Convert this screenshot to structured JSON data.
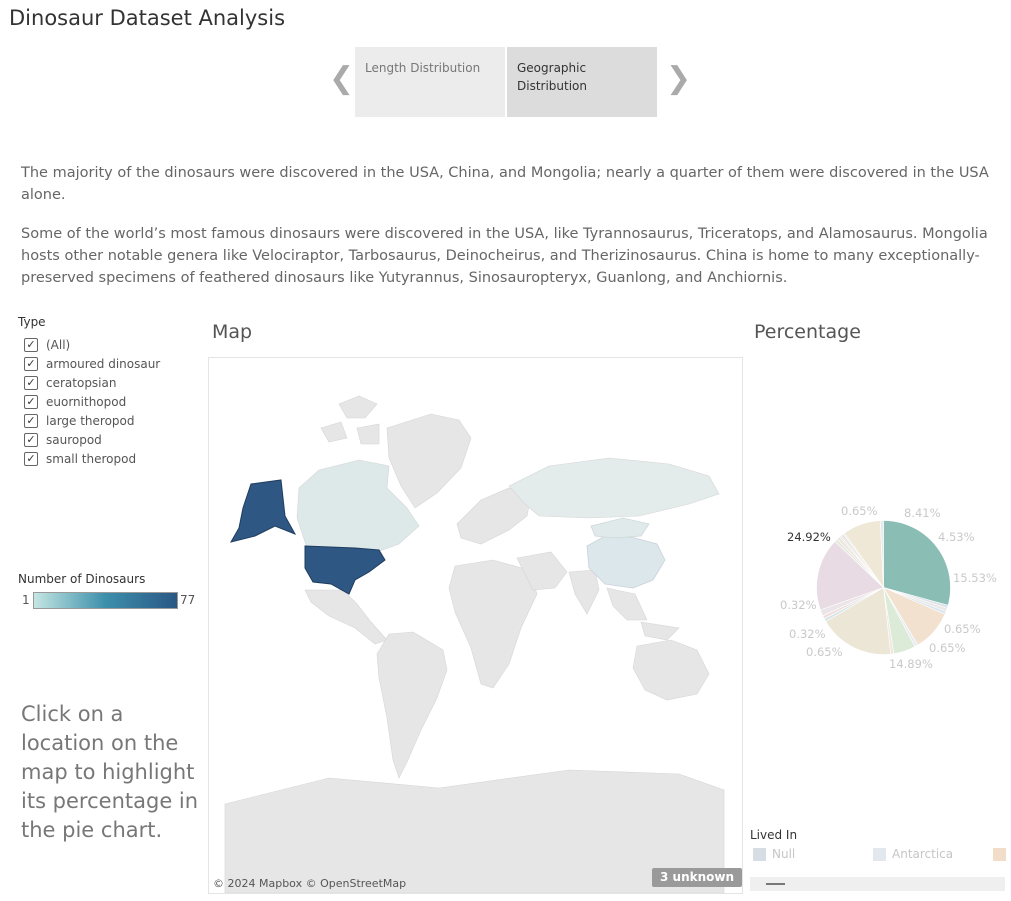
{
  "title": "Dinosaur Dataset Analysis",
  "story_nav": {
    "prev_icon": "chevron-left-icon",
    "next_icon": "chevron-right-icon",
    "tabs": [
      {
        "label": "Length Distribution",
        "active": false
      },
      {
        "label": "Geographic Distribution",
        "active": true
      }
    ]
  },
  "description": {
    "paragraph1": "The majority of the dinosaurs were discovered in the USA, China, and Mongolia; nearly a quarter of them were discovered in the USA alone.",
    "paragraph2": "Some of the world’s most famous dinosaurs were discovered in the USA, like Tyrannosaurus, Triceratops, and Alamosaurus. Mongolia hosts other notable genera like Velociraptor, Tarbosaurus, Deinocheirus, and Therizinosaurus. China is home to many exceptionally-preserved specimens of feathered dinosaurs like Yutyrannus, Sinosauropteryx, Guanlong, and Anchiornis."
  },
  "type_filter": {
    "label": "Type",
    "items": [
      {
        "label": "(All)",
        "checked": true
      },
      {
        "label": "armoured dinosaur",
        "checked": true
      },
      {
        "label": "ceratopsian",
        "checked": true
      },
      {
        "label": "euornithopod",
        "checked": true
      },
      {
        "label": "large theropod",
        "checked": true
      },
      {
        "label": "sauropod",
        "checked": true
      },
      {
        "label": "small theropod",
        "checked": true
      }
    ]
  },
  "count_legend": {
    "label": "Number of Dinosaurs",
    "min": "1",
    "max": "77",
    "colors": [
      "#c4e6e2",
      "#3c8fab",
      "#2a5785"
    ]
  },
  "hint": "Click on a location on the map to highlight its percentage in the pie chart.",
  "map": {
    "title": "Map",
    "credit": "© 2024 Mapbox © OpenStreetMap",
    "unknown_badge": "3 unknown",
    "highlight_color": "#2f5783",
    "land_color": "#e6e6e6",
    "tint_color": "#dde8e8"
  },
  "pie": {
    "title": "Percentage",
    "labels": [
      "0.65%",
      "8.41%",
      "24.92%",
      "4.53%",
      "15.53%",
      "0.32%",
      "0.32%",
      "0.65%",
      "0.65%",
      "0.65%",
      "14.89%"
    ]
  },
  "chart_data": {
    "type": "pie",
    "title": "Percentage",
    "highlighted": "24.92%",
    "slices": [
      {
        "value": 24.92,
        "label": "24.92%",
        "color": "#8abdb4",
        "highlighted": true
      },
      {
        "value": 0.65,
        "label": "0.65%",
        "color": "#dde3ea"
      },
      {
        "value": 0.65,
        "label": "",
        "color": "#e9e6e3"
      },
      {
        "value": 0.65,
        "label": "",
        "color": "#dce6ee"
      },
      {
        "value": 8.41,
        "label": "8.41%",
        "color": "#f2e1cf"
      },
      {
        "value": 0.65,
        "label": "",
        "color": "#e6ecf0"
      },
      {
        "value": 4.53,
        "label": "4.53%",
        "color": "#dcead8"
      },
      {
        "value": 0.65,
        "label": "",
        "color": "#f1e7e0"
      },
      {
        "value": 15.53,
        "label": "15.53%",
        "color": "#ebe6d6"
      },
      {
        "value": 0.65,
        "label": "0.65%",
        "color": "#d8e6e9"
      },
      {
        "value": 0.65,
        "label": "0.65%",
        "color": "#f0dcdc"
      },
      {
        "value": 1.3,
        "label": "",
        "color": "#ebe4e8"
      },
      {
        "value": 14.89,
        "label": "14.89%",
        "color": "#e8dbe3"
      },
      {
        "value": 0.65,
        "label": "0.65%",
        "color": "#e2eae0"
      },
      {
        "value": 0.65,
        "label": "",
        "color": "#f0e4da"
      },
      {
        "value": 0.32,
        "label": "0.32%",
        "color": "#dce3e8"
      },
      {
        "value": 0.65,
        "label": "",
        "color": "#ede6e0"
      },
      {
        "value": 0.32,
        "label": "0.32%",
        "color": "#e5e9ec"
      },
      {
        "value": 7.76,
        "label": "",
        "color": "#efe8d6"
      },
      {
        "value": 0.65,
        "label": "",
        "color": "#e3ebef"
      }
    ]
  },
  "lived_in_legend": {
    "title": "Lived In",
    "items": [
      {
        "label": "Null",
        "color": "#d6dde5"
      },
      {
        "label": "Antarctica",
        "color": "#e3e8ee"
      },
      {
        "label": "",
        "color": "#f2ddc8"
      }
    ]
  }
}
